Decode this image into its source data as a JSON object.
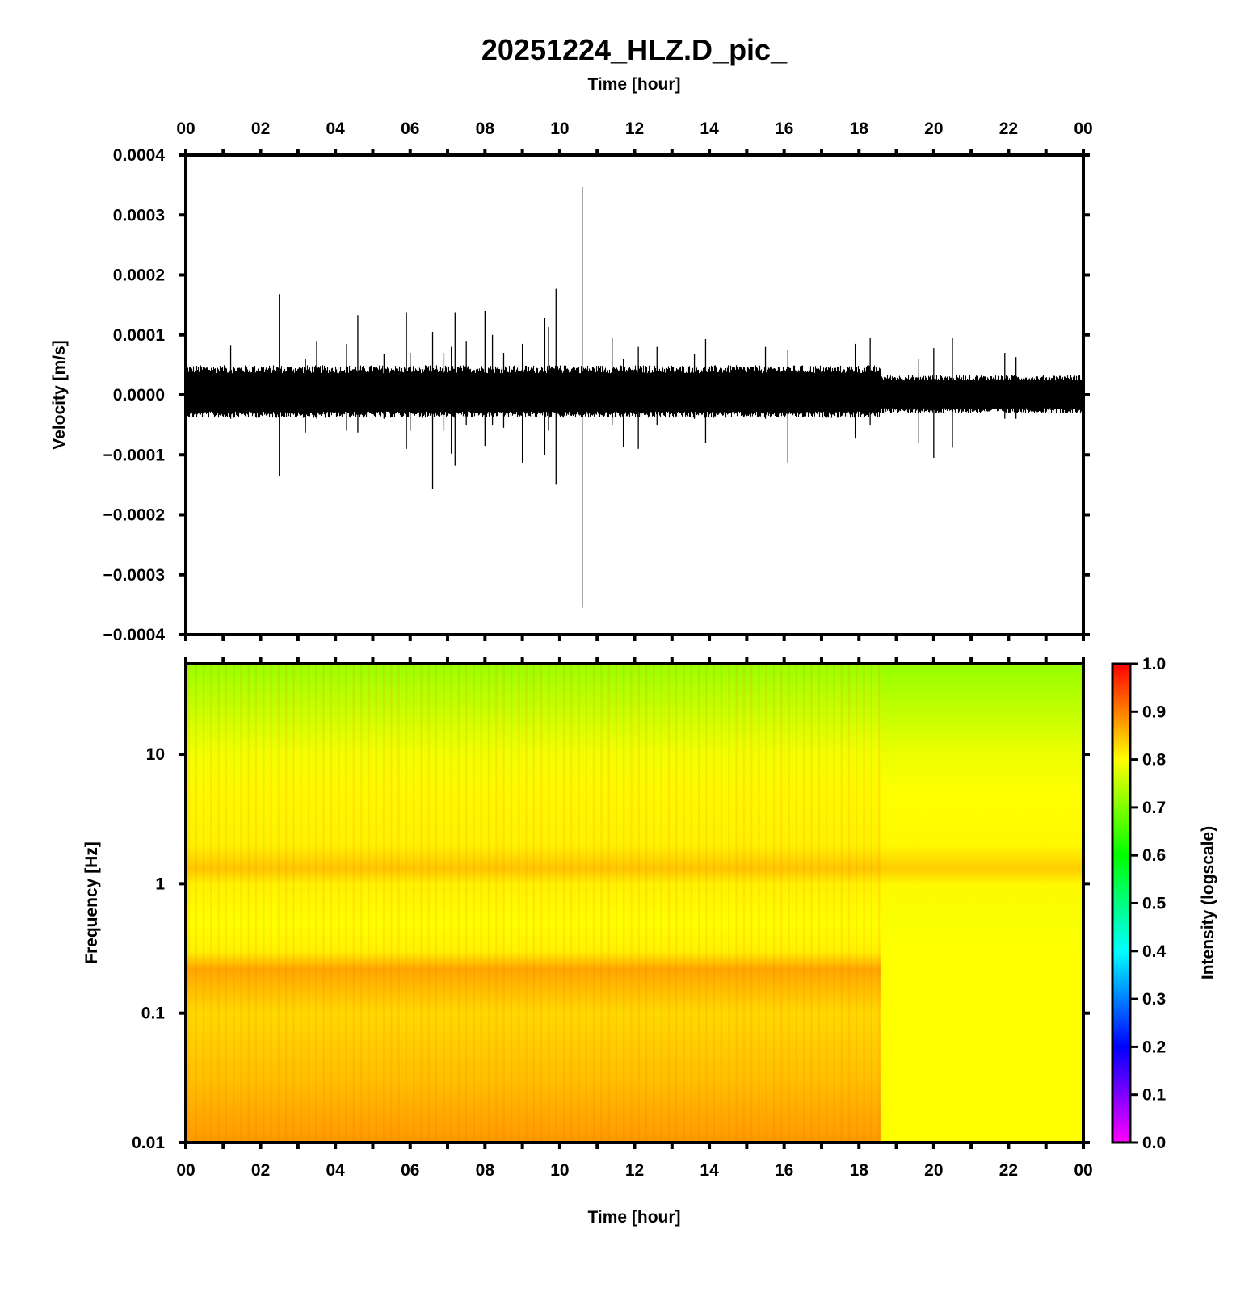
{
  "title": "20251224_HLZ.D_pic_",
  "chart_data": [
    {
      "type": "line",
      "name": "seismogram",
      "xlabel": "Time [hour]",
      "ylabel": "Velocity [m/s]",
      "xlim": [
        0,
        24
      ],
      "ylim": [
        -0.0004,
        0.0004
      ],
      "x_ticks": [
        "00",
        "02",
        "04",
        "06",
        "08",
        "10",
        "12",
        "14",
        "16",
        "18",
        "20",
        "22",
        "00"
      ],
      "y_ticks": [
        "0.0004",
        "0.0003",
        "0.0002",
        "0.0001",
        "0.0000",
        "−0.0001",
        "−0.0002",
        "−0.0003",
        "−0.0004"
      ],
      "noise_envelope": [
        {
          "t_start": 0.0,
          "t_end": 18.6,
          "upper": 4.5e-05,
          "lower": -3.5e-05
        },
        {
          "t_start": 18.6,
          "t_end": 24.0,
          "upper": 3e-05,
          "lower": -2.8e-05
        }
      ],
      "spikes": [
        {
          "t": 1.2,
          "max": 8.3e-05,
          "min": -4e-05
        },
        {
          "t": 2.5,
          "max": 0.000168,
          "min": -0.000135
        },
        {
          "t": 3.2,
          "max": 6e-05,
          "min": -6.3e-05
        },
        {
          "t": 3.5,
          "max": 9e-05,
          "min": -4e-05
        },
        {
          "t": 4.3,
          "max": 8.5e-05,
          "min": -6e-05
        },
        {
          "t": 4.6,
          "max": 0.000133,
          "min": -6.3e-05
        },
        {
          "t": 5.3,
          "max": 6.8e-05,
          "min": -4e-05
        },
        {
          "t": 5.9,
          "max": 0.000138,
          "min": -9e-05
        },
        {
          "t": 6.0,
          "max": 7e-05,
          "min": -6e-05
        },
        {
          "t": 6.6,
          "max": 0.000105,
          "min": -0.000157
        },
        {
          "t": 6.9,
          "max": 7e-05,
          "min": -6e-05
        },
        {
          "t": 7.1,
          "max": 8e-05,
          "min": -9.8e-05
        },
        {
          "t": 7.2,
          "max": 0.000138,
          "min": -0.000118
        },
        {
          "t": 7.5,
          "max": 9e-05,
          "min": -5e-05
        },
        {
          "t": 8.0,
          "max": 0.00014,
          "min": -8.5e-05
        },
        {
          "t": 8.2,
          "max": 0.0001,
          "min": -5e-05
        },
        {
          "t": 8.5,
          "max": 7e-05,
          "min": -5.5e-05
        },
        {
          "t": 9.0,
          "max": 8.5e-05,
          "min": -0.000113
        },
        {
          "t": 9.6,
          "max": 0.000128,
          "min": -0.0001
        },
        {
          "t": 9.7,
          "max": 0.000113,
          "min": -6e-05
        },
        {
          "t": 9.9,
          "max": 0.000177,
          "min": -0.00015
        },
        {
          "t": 10.6,
          "max": 0.000347,
          "min": -0.000355
        },
        {
          "t": 11.4,
          "max": 9.5e-05,
          "min": -5e-05
        },
        {
          "t": 11.7,
          "max": 6e-05,
          "min": -8.7e-05
        },
        {
          "t": 12.1,
          "max": 8e-05,
          "min": -9e-05
        },
        {
          "t": 12.6,
          "max": 8e-05,
          "min": -5e-05
        },
        {
          "t": 13.6,
          "max": 6.8e-05,
          "min": -4e-05
        },
        {
          "t": 13.9,
          "max": 9.3e-05,
          "min": -8e-05
        },
        {
          "t": 15.5,
          "max": 8e-05,
          "min": -4e-05
        },
        {
          "t": 16.1,
          "max": 7.5e-05,
          "min": -0.000113
        },
        {
          "t": 17.9,
          "max": 8.5e-05,
          "min": -7.3e-05
        },
        {
          "t": 18.3,
          "max": 9.5e-05,
          "min": -5e-05
        },
        {
          "t": 19.6,
          "max": 6e-05,
          "min": -8e-05
        },
        {
          "t": 20.0,
          "max": 7.8e-05,
          "min": -0.000105
        },
        {
          "t": 20.5,
          "max": 9.5e-05,
          "min": -8.8e-05
        },
        {
          "t": 21.9,
          "max": 7e-05,
          "min": -4e-05
        },
        {
          "t": 22.2,
          "max": 6.3e-05,
          "min": -4e-05
        }
      ]
    },
    {
      "type": "heatmap",
      "name": "spectrogram",
      "xlabel": "Time [hour]",
      "ylabel": "Frequency [Hz]",
      "xlim": [
        0,
        24
      ],
      "ylim": [
        0.01,
        50
      ],
      "yscale": "log",
      "x_ticks": [
        "00",
        "02",
        "04",
        "06",
        "08",
        "10",
        "12",
        "14",
        "16",
        "18",
        "20",
        "22",
        "00"
      ],
      "y_ticks": [
        "10",
        "1",
        "0.1",
        "0.01"
      ],
      "y_tick_values": [
        10,
        1,
        0.1,
        0.01
      ],
      "colorbar_label": "Intensity (logscale)",
      "colorbar_ticks": [
        "1.0",
        "0.9",
        "0.8",
        "0.7",
        "0.6",
        "0.5",
        "0.4",
        "0.3",
        "0.2",
        "0.1",
        "0.0"
      ],
      "colorbar_range": [
        0.0,
        1.0
      ],
      "colormap": [
        "#ff00ff",
        "#0000ff",
        "#00ffff",
        "#00ff00",
        "#ffff00",
        "#ff0000"
      ],
      "intensity_profile": [
        {
          "freq": 50,
          "value": 0.72
        },
        {
          "freq": 20,
          "value": 0.76
        },
        {
          "freq": 10,
          "value": 0.79
        },
        {
          "freq": 5,
          "value": 0.805
        },
        {
          "freq": 2,
          "value": 0.81
        },
        {
          "freq": 1.3,
          "value": 0.845
        },
        {
          "freq": 1,
          "value": 0.81
        },
        {
          "freq": 0.5,
          "value": 0.8
        },
        {
          "freq": 0.3,
          "value": 0.81
        },
        {
          "freq": 0.22,
          "value": 0.87
        },
        {
          "freq": 0.1,
          "value": 0.83
        },
        {
          "freq": 0.03,
          "value": 0.85
        },
        {
          "freq": 0.01,
          "value": 0.88
        }
      ],
      "quiet_after_hour": 18.6,
      "quiet_value": 0.79
    }
  ]
}
